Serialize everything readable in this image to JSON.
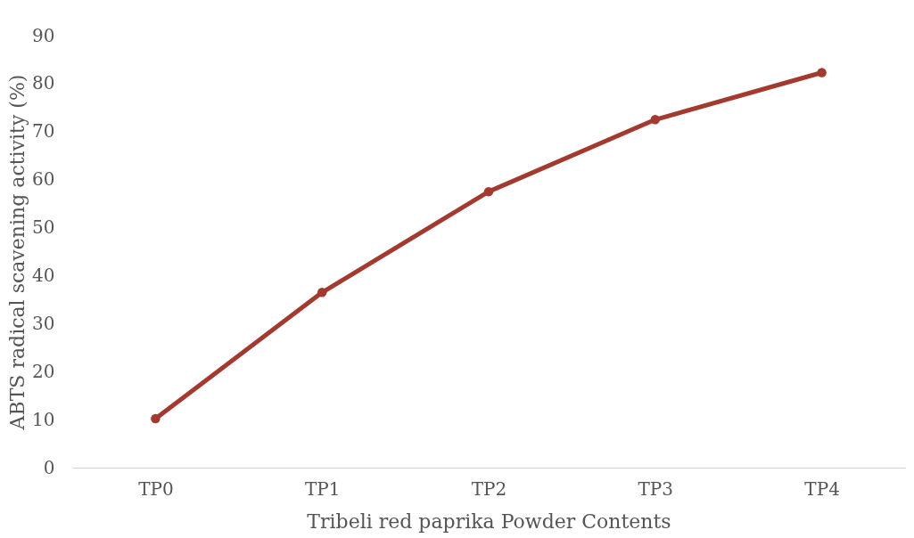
{
  "chart_data": {
    "type": "line",
    "xlabel": "Tribeli red paprika Powder Contents",
    "ylabel": "ABTS radical scavening activity (%)",
    "categories": [
      "TP0",
      "TP1",
      "TP2",
      "TP3",
      "TP4"
    ],
    "series": [
      {
        "color": "#a33a2f",
        "values": [
          10.2,
          36.5,
          57.5,
          72.5,
          82.3
        ]
      }
    ],
    "ylim": [
      0,
      90
    ],
    "yticks": [
      0,
      10,
      20,
      30,
      40,
      50,
      60,
      70,
      80,
      90
    ],
    "grid": false,
    "marker": "circle",
    "line_style": "solid"
  }
}
